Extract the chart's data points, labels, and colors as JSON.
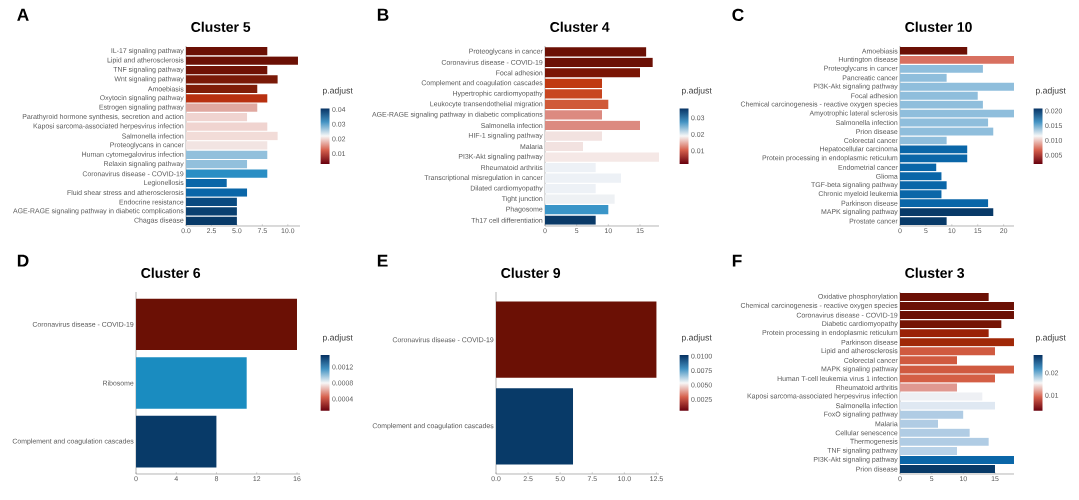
{
  "chart_data": [
    {
      "type": "bar",
      "orientation": "horizontal",
      "title": "Cluster 5",
      "annotations": [
        "A"
      ],
      "categories": [
        "IL-17 signaling pathway",
        "Lipid and atherosclerosis",
        "TNF signaling pathway",
        "Wnt signaling pathway",
        "Amoebiasis",
        "Oxytocin signaling pathway",
        "Estrogen signaling pathway",
        "Parathyroid hormone synthesis, secretion and action",
        "Kaposi sarcoma-associated herpesvirus infection",
        "Salmonella infection",
        "Proteoglycans in cancer",
        "Human cytomegalovirus infection",
        "Relaxin signaling pathway",
        "Coronavirus disease - COVID-19",
        "Legionellosis",
        "Fluid shear stress and atherosclerosis",
        "Endocrine resistance",
        "AGE-RAGE signaling pathway in diabetic complications",
        "Chagas disease"
      ],
      "values": [
        8,
        11,
        8,
        9,
        7,
        8,
        7,
        6,
        8,
        9,
        8,
        8,
        6,
        8,
        4,
        6,
        5,
        5,
        5
      ],
      "colors": [
        "#6b1005",
        "#6b1005",
        "#701205",
        "#7a1a08",
        "#7f1d08",
        "#b83010",
        "#e0a8a0",
        "#f0d4d0",
        "#f0d4d0",
        "#f2dcd8",
        "#f2e4e2",
        "#92c0dc",
        "#92c0dc",
        "#2a8ec4",
        "#0a66a8",
        "#0a66a8",
        "#0a4a80",
        "#0a4070",
        "#083a68"
      ],
      "xlim": [
        0,
        11.2
      ],
      "xticks": [
        {
          "value": 0,
          "label": "0.0"
        },
        {
          "value": 2.5,
          "label": "2.5"
        },
        {
          "value": 5,
          "label": "5.0"
        },
        {
          "value": 7.5,
          "label": "7.5"
        },
        {
          "value": 10,
          "label": "10.0"
        }
      ],
      "clabel": "p.adjust",
      "clim": [
        0.003,
        0.041
      ],
      "cticks": [
        0.01,
        0.02,
        0.03,
        0.04
      ]
    },
    {
      "type": "bar",
      "orientation": "horizontal",
      "title": "Cluster 4",
      "annotations": [
        "B"
      ],
      "categories": [
        "Proteoglycans in cancer",
        "Coronavirus disease - COVID-19",
        "Focal adhesion",
        "Complement and coagulation cascades",
        "Hypertrophic cardiomyopathy",
        "Leukocyte transendothelial migration",
        "AGE-RAGE signaling pathway in diabetic complications",
        "Salmonella infection",
        "HIF-1 signaling pathway",
        "Malaria",
        "PI3K-Akt signaling pathway",
        "Rheumatoid arthritis",
        "Transcriptional misregulation in cancer",
        "Dilated cardiomyopathy",
        "Tight junction",
        "Phagosome",
        "Th17 cell differentiation"
      ],
      "values": [
        16,
        17,
        15,
        9,
        9,
        10,
        9,
        15,
        9,
        6,
        18,
        8,
        12,
        8,
        11,
        10,
        8
      ],
      "colors": [
        "#6b1005",
        "#6b1005",
        "#7a1505",
        "#c03a12",
        "#c84620",
        "#d05a38",
        "#dc8a80",
        "#dc8a80",
        "#f2e2e0",
        "#f2e2e0",
        "#f5e8e6",
        "#edf1f6",
        "#edf1f6",
        "#edf1f6",
        "#eef1f4",
        "#3a95c8",
        "#0a3a68"
      ],
      "xlim": [
        0,
        18
      ],
      "xticks": [
        0,
        5,
        10,
        15
      ],
      "clabel": "p.adjust",
      "clim": [
        0.002,
        0.036
      ],
      "cticks": [
        0.01,
        0.02,
        0.03
      ]
    },
    {
      "type": "bar",
      "orientation": "horizontal",
      "title": "Cluster 10",
      "annotations": [
        "C"
      ],
      "categories": [
        "Amoebiasis",
        "Huntington disease",
        "Proteoglycans in cancer",
        "Pancreatic cancer",
        "PI3K-Akt signaling pathway",
        "Focal adhesion",
        "Chemical carcinogenesis - reactive oxygen species",
        "Amyotrophic lateral sclerosis",
        "Salmonella infection",
        "Prion disease",
        "Colorectal cancer",
        "Hepatocellular carcinoma",
        "Protein processing in endoplasmic reticulum",
        "Endometrial cancer",
        "Glioma",
        "TGF-beta signaling pathway",
        "Chronic myeloid leukemia",
        "Parkinson disease",
        "MAPK signaling pathway",
        "Prostate cancer"
      ],
      "values": [
        13,
        22,
        16,
        9,
        22,
        15,
        16,
        22,
        17,
        18,
        9,
        13,
        13,
        7,
        8,
        9,
        8,
        17,
        18,
        9
      ],
      "colors": [
        "#6b1005",
        "#d87060",
        "#8fbedc",
        "#8fbedc",
        "#8fbedc",
        "#8fbedc",
        "#8fbedc",
        "#8fbedc",
        "#8fbedc",
        "#8fbedc",
        "#8fbedc",
        "#0a66a8",
        "#0a66a8",
        "#0a66a8",
        "#0a66a8",
        "#0a66a8",
        "#0a66a8",
        "#0a66a8",
        "#083a68",
        "#083a68"
      ],
      "xlim": [
        0,
        22
      ],
      "xticks": [
        0,
        5,
        10,
        15,
        20
      ],
      "clabel": "p.adjust",
      "clim": [
        0.002,
        0.021
      ],
      "cticks": [
        {
          "value": 0.005,
          "label": "0.005"
        },
        {
          "value": 0.01,
          "label": "0.010"
        },
        {
          "value": 0.015,
          "label": "0.015"
        },
        {
          "value": 0.02,
          "label": "0.020"
        }
      ]
    },
    {
      "type": "bar",
      "orientation": "horizontal",
      "title": "Cluster 6",
      "annotations": [
        "D"
      ],
      "categories": [
        "Coronavirus disease - COVID-19",
        "Ribosome",
        "Complement and coagulation cascades"
      ],
      "values": [
        16,
        11,
        8
      ],
      "colors": [
        "#6b1005",
        "#1a8cc0",
        "#083a68"
      ],
      "xlim": [
        0,
        16.3
      ],
      "xticks": [
        0,
        4,
        8,
        12,
        16
      ],
      "clabel": "p.adjust",
      "clim": [
        0.0001,
        0.0015
      ],
      "cticks": [
        0.0004,
        0.0008,
        0.0012
      ]
    },
    {
      "type": "bar",
      "orientation": "horizontal",
      "title": "Cluster 9",
      "annotations": [
        "E"
      ],
      "categories": [
        "Coronavirus disease - COVID-19",
        "Complement and coagulation cascades"
      ],
      "values": [
        12.5,
        6
      ],
      "colors": [
        "#6b1005",
        "#083a68"
      ],
      "xlim": [
        0,
        12.7
      ],
      "xticks": [
        {
          "value": 0,
          "label": "0.0"
        },
        {
          "value": 2.5,
          "label": "2.5"
        },
        {
          "value": 5,
          "label": "5.0"
        },
        {
          "value": 7.5,
          "label": "7.5"
        },
        {
          "value": 10,
          "label": "10.0"
        },
        {
          "value": 12.5,
          "label": "12.5"
        }
      ],
      "clabel": "p.adjust",
      "clim": [
        0.0005,
        0.0102
      ],
      "cticks": [
        {
          "value": 0.0025,
          "label": "0.0025"
        },
        {
          "value": 0.005,
          "label": "0.0050"
        },
        {
          "value": 0.0075,
          "label": "0.0075"
        },
        {
          "value": 0.01,
          "label": "0.0100"
        }
      ]
    },
    {
      "type": "bar",
      "orientation": "horizontal",
      "title": "Cluster 3",
      "annotations": [
        "F"
      ],
      "categories": [
        "Oxidative phosphorylation",
        "Chemical carcinogenesis - reactive oxygen species",
        "Coronavirus disease - COVID-19",
        "Diabetic cardiomyopathy",
        "Protein processing in endoplasmic reticulum",
        "Parkinson disease",
        "Lipid and atherosclerosis",
        "Colorectal cancer",
        "MAPK signaling pathway",
        "Human T-cell leukemia virus 1 infection",
        "Rheumatoid arthritis",
        "Kaposi sarcoma-associated herpesvirus infection",
        "Salmonella infection",
        "FoxO signaling pathway",
        "Malaria",
        "Cellular senescence",
        "Thermogenesis",
        "TNF signaling pathway",
        "PI3K-Akt signaling pathway",
        "Prion disease"
      ],
      "values": [
        14,
        18,
        18,
        16,
        14,
        18,
        15,
        9,
        18,
        15,
        9,
        13,
        15,
        10,
        6,
        11,
        14,
        9,
        18,
        15
      ],
      "colors": [
        "#6b1005",
        "#6b1005",
        "#6b1005",
        "#751405",
        "#9a2208",
        "#a02808",
        "#d05a40",
        "#d05a40",
        "#d05a40",
        "#d45f45",
        "#e09890",
        "#eef0f4",
        "#dfe8f2",
        "#b0cce4",
        "#b0cce4",
        "#b0cce4",
        "#b0cce4",
        "#b8d2e8",
        "#0a66a8",
        "#083a68"
      ],
      "xlim": [
        0,
        18
      ],
      "xticks": [
        0,
        5,
        10,
        15
      ],
      "clabel": "p.adjust",
      "clim": [
        0.003,
        0.028
      ],
      "cticks": [
        0.01,
        0.02
      ]
    }
  ]
}
